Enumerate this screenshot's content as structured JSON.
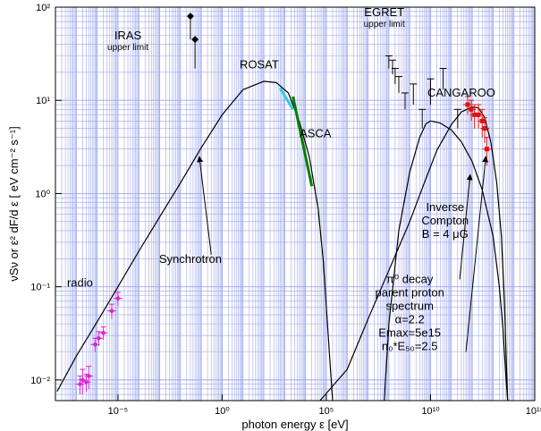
{
  "chart_data": {
    "type": "line",
    "x_scale": "log",
    "y_scale": "log",
    "xlim": [
      1e-08,
      1000000000000000.0
    ],
    "ylim": [
      0.006,
      100
    ],
    "grid": true,
    "xlabel": "photon energy ε [eV]",
    "ylabel": "νSν or ε² dF/d ε [ eV cm⁻² s⁻¹]",
    "x_ticks": [
      {
        "value": 1e-05,
        "label": "10⁻⁵"
      },
      {
        "value": 1,
        "label": "10⁰"
      },
      {
        "value": 100000.0,
        "label": "10⁵"
      },
      {
        "value": 10000000000.0,
        "label": "10¹⁰"
      },
      {
        "value": 1000000000000000.0,
        "label": "10¹⁵"
      }
    ],
    "y_ticks": [
      {
        "value": 0.01,
        "label": "10⁻²"
      },
      {
        "value": 0.1,
        "label": "10⁻¹"
      },
      {
        "value": 1,
        "label": "10⁰"
      },
      {
        "value": 10,
        "label": "10¹"
      },
      {
        "value": 100,
        "label": "10²"
      }
    ],
    "series": [
      {
        "name": "Synchrotron",
        "color": "#000000",
        "points": [
          [
            1.2e-08,
            0.0075
          ],
          [
            1e-07,
            0.018
          ],
          [
            1e-06,
            0.042
          ],
          [
            1e-05,
            0.1
          ],
          [
            0.0001,
            0.24
          ],
          [
            0.001,
            0.56
          ],
          [
            0.01,
            1.3
          ],
          [
            0.1,
            3.1
          ],
          [
            1,
            7
          ],
          [
            10,
            13
          ],
          [
            100,
            16
          ],
          [
            400,
            15.5
          ],
          [
            1500,
            12
          ],
          [
            5000,
            6
          ],
          [
            15000,
            2.5
          ],
          [
            40000,
            0.7
          ],
          [
            70000,
            0.2
          ],
          [
            100000,
            0.06
          ],
          [
            150000,
            0.015
          ],
          [
            200000,
            0.006
          ]
        ]
      },
      {
        "name": "Inverse Compton",
        "color": "#000000",
        "points": [
          [
            50000.0,
            0.006
          ],
          [
            1000000.0,
            0.013
          ],
          [
            10000000.0,
            0.045
          ],
          [
            100000000.0,
            0.15
          ],
          [
            1000000000.0,
            0.5
          ],
          [
            5000000000.0,
            1.3
          ],
          [
            20000000000.0,
            2.9
          ],
          [
            100000000000.0,
            5.5
          ],
          [
            300000000000.0,
            7.5
          ],
          [
            1000000000000.0,
            8.5
          ],
          [
            2000000000000.0,
            8.3
          ],
          [
            4000000000000.0,
            6.5
          ],
          [
            8000000000000.0,
            3.5
          ],
          [
            15000000000000.0,
            1.3
          ],
          [
            25000000000000.0,
            0.35
          ],
          [
            35000000000000.0,
            0.07
          ],
          [
            45000000000000.0,
            0.012
          ],
          [
            50000000000000.0,
            0.006
          ]
        ]
      },
      {
        "name": "π⁰ decay",
        "color": "#000000",
        "points": [
          [
            60000000.0,
            0.006
          ],
          [
            100000000.0,
            0.04
          ],
          [
            300000000.0,
            0.4
          ],
          [
            1000000000.0,
            1.7
          ],
          [
            3000000000.0,
            4
          ],
          [
            6000000000.0,
            5.6
          ],
          [
            10000000000.0,
            6
          ],
          [
            30000000000.0,
            5.7
          ],
          [
            100000000000.0,
            4.8
          ],
          [
            300000000000.0,
            3.6
          ],
          [
            1000000000000.0,
            2.2
          ],
          [
            3000000000000.0,
            1.1
          ],
          [
            10000000000000.0,
            0.35
          ],
          [
            20000000000000.0,
            0.1
          ],
          [
            30000000000000.0,
            0.035
          ],
          [
            40000000000000.0,
            0.012
          ],
          [
            50000000000000.0,
            0.006
          ]
        ]
      },
      {
        "name": "ROSAT",
        "color": "#33ccdd",
        "points": [
          [
            600,
            13.5
          ],
          [
            2500,
            8
          ]
        ]
      },
      {
        "name": "ASCA",
        "color": "#008000",
        "points": [
          [
            2500,
            11
          ],
          [
            20000,
            1.2
          ]
        ]
      }
    ],
    "radio_data": [
      {
        "x": 1.5e-07,
        "y": 0.009,
        "err": 0.002
      },
      {
        "x": 2e-07,
        "y": 0.01,
        "err": 0.003
      },
      {
        "x": 3e-07,
        "y": 0.0095,
        "err": 0.002
      },
      {
        "x": 4e-07,
        "y": 0.011,
        "err": 0.003
      },
      {
        "x": 8e-07,
        "y": 0.024,
        "err": 0.004
      },
      {
        "x": 1.2e-06,
        "y": 0.028,
        "err": 0.005
      },
      {
        "x": 2e-06,
        "y": 0.032,
        "err": 0.005
      },
      {
        "x": 5e-06,
        "y": 0.055,
        "err": 0.01
      },
      {
        "x": 1e-05,
        "y": 0.075,
        "err": 0.012
      }
    ],
    "iras_data": [
      {
        "x": 0.03,
        "y": 80,
        "low": 45
      },
      {
        "x": 0.05,
        "y": 45,
        "low": 22
      }
    ],
    "egret_data": [
      {
        "x": 100000000.0,
        "y": 30,
        "low": 22
      },
      {
        "x": 150000000.0,
        "y": 27,
        "low": 19
      },
      {
        "x": 200000000.0,
        "y": 22,
        "low": 15
      },
      {
        "x": 300000000.0,
        "y": 18,
        "low": 12
      },
      {
        "x": 600000000.0,
        "y": 12,
        "low": 8
      },
      {
        "x": 1500000000.0,
        "y": 15,
        "low": 9
      },
      {
        "x": 4000000000.0,
        "y": 8,
        "low": 5
      },
      {
        "x": 10000000000.0,
        "y": 17,
        "low": 9
      },
      {
        "x": 40000000000.0,
        "y": 22,
        "low": 13
      },
      {
        "x": 200000000000.0,
        "y": 8,
        "low": 5
      }
    ],
    "cangaroo_data": [
      {
        "x": 600000000000.0,
        "y": 9,
        "err": 2
      },
      {
        "x": 900000000000.0,
        "y": 8,
        "err": 2
      },
      {
        "x": 1300000000000.0,
        "y": 7,
        "err": 2
      },
      {
        "x": 2000000000000.0,
        "y": 7,
        "err": 2
      },
      {
        "x": 3000000000000.0,
        "y": 6,
        "err": 2
      },
      {
        "x": 4000000000000.0,
        "y": 5,
        "err": 1.5
      },
      {
        "x": 5000000000000.0,
        "y": 3,
        "err": 1
      }
    ],
    "annotations": [
      {
        "key": "iras",
        "lines": [
          "IRAS",
          "upper limit"
        ],
        "x": 3e-05,
        "y": 45
      },
      {
        "key": "egret",
        "lines": [
          "EGRET",
          "upper limit"
        ],
        "x": 60000000.0,
        "y": 80
      },
      {
        "key": "rosat",
        "lines": [
          "ROSAT"
        ],
        "x": 60,
        "y": 22
      },
      {
        "key": "asca",
        "lines": [
          "ASCA"
        ],
        "x": 30000.0,
        "y": 4
      },
      {
        "key": "cangaroo",
        "lines": [
          "CANGAROO"
        ],
        "x": 300000000000.0,
        "y": 11
      },
      {
        "key": "synchrotron",
        "lines": [
          "Synchrotron"
        ],
        "x": 0.03,
        "y": 0.18
      },
      {
        "key": "ic",
        "lines": [
          "Inverse",
          "Compton",
          "B = 4  μG"
        ],
        "x": 50000000000.0,
        "y": 0.65
      },
      {
        "key": "pi0",
        "lines": [
          "π⁰ decay",
          "parent proton",
          "spectrum",
          "α=2.2",
          "Emax=5e15",
          "n₀*E₅₀=2.5"
        ],
        "x": 1000000000.0,
        "y": 0.11
      },
      {
        "key": "radio",
        "lines": [
          "radio"
        ],
        "x": 1.5e-07,
        "y": 0.1
      }
    ],
    "arrows": [
      {
        "from": [
          0.3,
          0.22
        ],
        "to": [
          0.08,
          2.5
        ]
      },
      {
        "from": [
          250000000000.0,
          0.12
        ],
        "to": [
          800000000000.0,
          1.6
        ]
      },
      {
        "from": [
          500000000000.0,
          0.02
        ],
        "to": [
          4500000000000.0,
          2.5
        ]
      }
    ]
  }
}
